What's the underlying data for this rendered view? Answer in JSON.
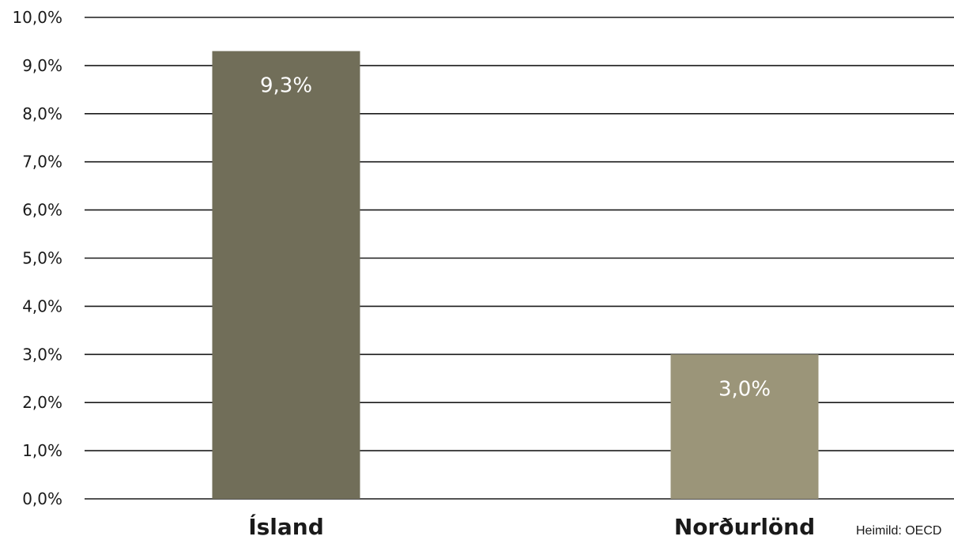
{
  "chart_data": {
    "type": "bar",
    "categories": [
      "Ísland",
      "Norðurlönd"
    ],
    "values": [
      9.3,
      3.0
    ],
    "data_labels": [
      "9,3%",
      "3,0%"
    ],
    "bar_colors": [
      "#716e59",
      "#9b9579"
    ],
    "ylim": [
      0,
      10
    ],
    "y_ticks": [
      0,
      1,
      2,
      3,
      4,
      5,
      6,
      7,
      8,
      9,
      10
    ],
    "y_tick_labels": [
      "0,0%",
      "1,0%",
      "2,0%",
      "3,0%",
      "4,0%",
      "5,0%",
      "6,0%",
      "7,0%",
      "8,0%",
      "9,0%",
      "10,0%"
    ],
    "grid": true,
    "legend": "none",
    "source": "Heimild: OECD"
  }
}
